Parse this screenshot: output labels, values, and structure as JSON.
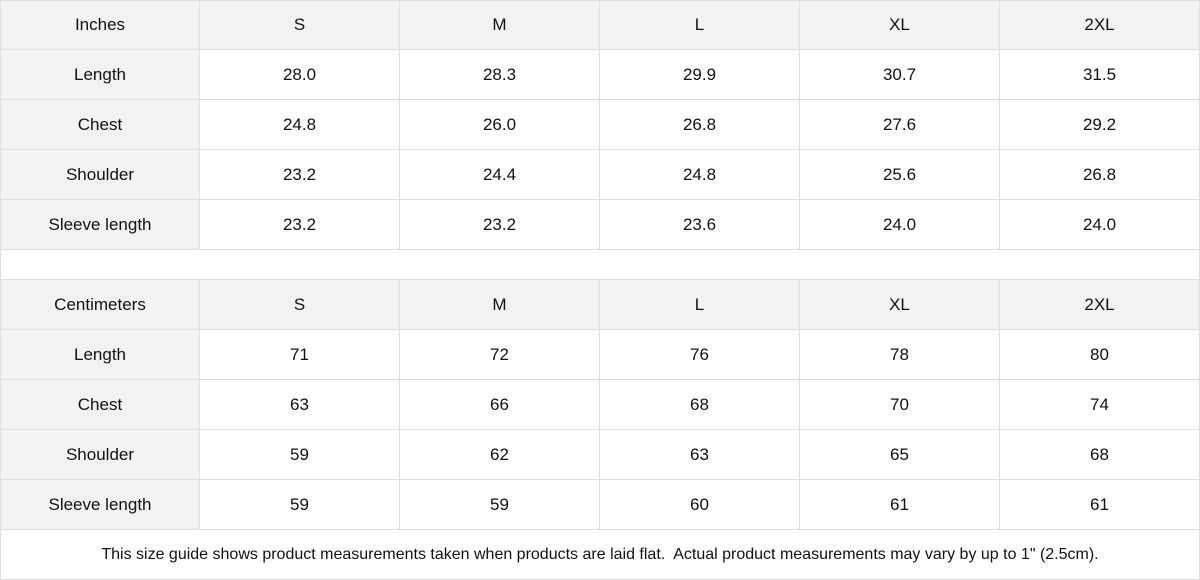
{
  "tables": [
    {
      "header": [
        "Inches",
        "S",
        "M",
        "L",
        "XL",
        "2XL"
      ],
      "rows": [
        [
          "Length",
          "28.0",
          "28.3",
          "29.9",
          "30.7",
          "31.5"
        ],
        [
          "Chest",
          "24.8",
          "26.0",
          "26.8",
          "27.6",
          "29.2"
        ],
        [
          "Shoulder",
          "23.2",
          "24.4",
          "24.8",
          "25.6",
          "26.8"
        ],
        [
          "Sleeve length",
          "23.2",
          "23.2",
          "23.6",
          "24.0",
          "24.0"
        ]
      ]
    },
    {
      "header": [
        "Centimeters",
        "S",
        "M",
        "L",
        "XL",
        "2XL"
      ],
      "rows": [
        [
          "Length",
          "71",
          "72",
          "76",
          "78",
          "80"
        ],
        [
          "Chest",
          "63",
          "66",
          "68",
          "70",
          "74"
        ],
        [
          "Shoulder",
          "59",
          "62",
          "63",
          "65",
          "68"
        ],
        [
          "Sleeve length",
          "59",
          "59",
          "60",
          "61",
          "61"
        ]
      ]
    }
  ],
  "footnote": "This size guide shows product measurements taken when products are laid flat.  Actual product measurements may vary by up to 1\" (2.5cm).",
  "colors": {
    "header_bg": "#f2f2f2",
    "border": "#dddddd"
  }
}
